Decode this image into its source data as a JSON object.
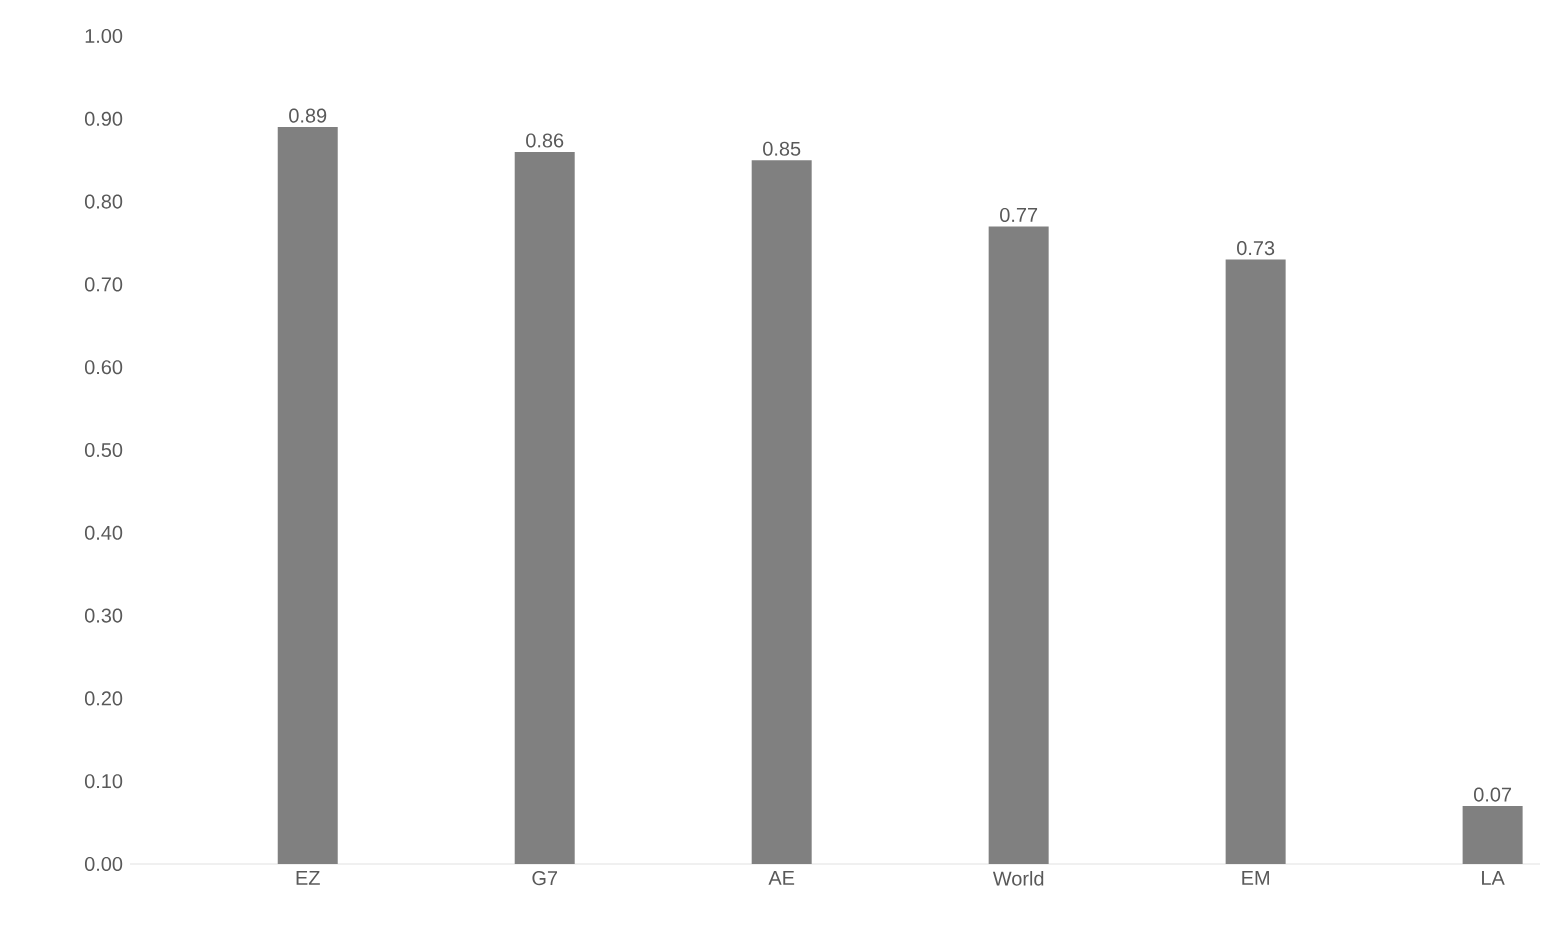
{
  "chart_data": {
    "type": "bar",
    "categories": [
      "EZ",
      "G7",
      "AE",
      "World",
      "EM",
      "LA"
    ],
    "values": [
      0.89,
      0.86,
      0.85,
      0.77,
      0.73,
      0.07
    ],
    "value_labels": [
      "0.89",
      "0.86",
      "0.85",
      "0.77",
      "0.73",
      "0.07"
    ],
    "color": "#808080",
    "ylim": [
      0,
      1
    ],
    "yticks": [
      {
        "value": 0,
        "label": "0.00"
      },
      {
        "value": 0.1,
        "label": "0.10"
      },
      {
        "value": 0.2,
        "label": "0.20"
      },
      {
        "value": 0.3,
        "label": "0.30"
      },
      {
        "value": 0.4,
        "label": "0.40"
      },
      {
        "value": 0.5,
        "label": "0.50"
      },
      {
        "value": 0.6,
        "label": "0.60"
      },
      {
        "value": 0.7,
        "label": "0.70"
      },
      {
        "value": 0.8,
        "label": "0.80"
      },
      {
        "value": 0.9,
        "label": "0.90"
      },
      {
        "value": 1,
        "label": "1.00"
      }
    ]
  }
}
